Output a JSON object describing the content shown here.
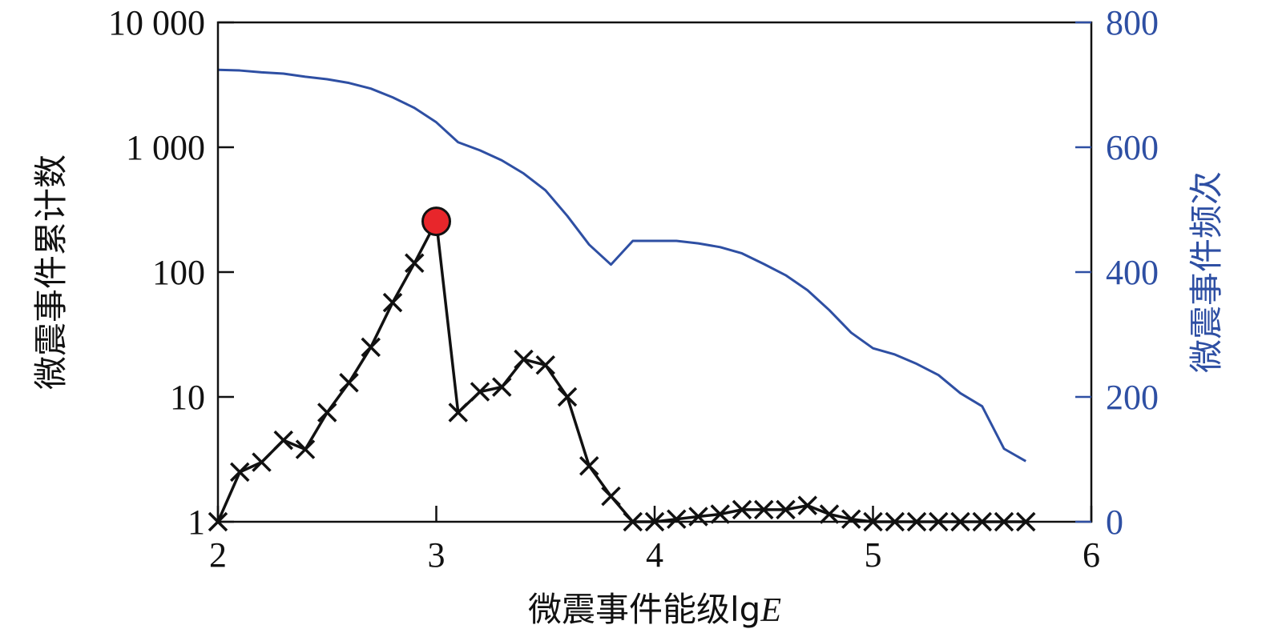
{
  "chart_data": {
    "type": "line",
    "xlabel_cn": "微震事件能级lg",
    "xlabel_var": "E",
    "ylabel_left": "微震事件累计数",
    "ylabel_right": "微震事件频次",
    "x_range": [
      2,
      6
    ],
    "y_left_range": [
      1,
      10000
    ],
    "y_left_scale": "log",
    "y_right_range": [
      0,
      800
    ],
    "grid": false,
    "x_ticks": [
      2,
      3,
      4,
      5,
      6
    ],
    "x_tick_labels": [
      "2",
      "3",
      "4",
      "5",
      "6"
    ],
    "y_left_ticks": [
      1,
      10,
      100,
      1000,
      10000
    ],
    "y_left_tick_labels": [
      "1",
      "10",
      "100",
      "1 000",
      "10 000"
    ],
    "y_right_ticks": [
      0,
      200,
      400,
      600,
      800
    ],
    "y_right_tick_labels": [
      "0",
      "200",
      "400",
      "600",
      "800"
    ],
    "colors": {
      "axis": "#111111",
      "left_series": "#111111",
      "right_series": "#2e4fa3",
      "right_axis": "#2e4fa3",
      "highlight_fill": "#e8262b",
      "highlight_stroke": "#111111"
    },
    "series": [
      {
        "axis": "left",
        "marker": "x",
        "x": [
          2.0,
          2.1,
          2.2,
          2.3,
          2.4,
          2.5,
          2.6,
          2.7,
          2.8,
          2.9,
          3.0,
          3.1,
          3.2,
          3.3,
          3.4,
          3.5,
          3.6,
          3.7,
          3.8,
          3.9,
          4.0,
          4.1,
          4.2,
          4.3,
          4.4,
          4.5,
          4.6,
          4.7,
          4.8,
          4.9,
          5.0,
          5.1,
          5.2,
          5.3,
          5.4,
          5.5,
          5.6,
          5.7
        ],
        "y": [
          1,
          2.5,
          3,
          4.5,
          3.8,
          7.5,
          13,
          25,
          57,
          118,
          255,
          7.5,
          11,
          12,
          20,
          18,
          10,
          2.8,
          1.6,
          1,
          1,
          1.05,
          1.1,
          1.15,
          1.25,
          1.25,
          1.25,
          1.35,
          1.15,
          1.05,
          1,
          1,
          1,
          1,
          1,
          1,
          1,
          1
        ]
      },
      {
        "axis": "right",
        "marker": "none",
        "x": [
          2.0,
          2.1,
          2.2,
          2.3,
          2.4,
          2.5,
          2.6,
          2.7,
          2.8,
          2.9,
          3.0,
          3.1,
          3.2,
          3.3,
          3.4,
          3.5,
          3.6,
          3.7,
          3.8,
          3.9,
          4.0,
          4.1,
          4.2,
          4.3,
          4.4,
          4.5,
          4.6,
          4.7,
          4.8,
          4.9,
          5.0,
          5.1,
          5.2,
          5.3,
          5.4,
          5.5,
          5.6,
          5.7
        ],
        "y": [
          724,
          723,
          720,
          718,
          713,
          709,
          703,
          694,
          680,
          663,
          640,
          608,
          595,
          579,
          558,
          531,
          490,
          444,
          412,
          450,
          450,
          450,
          446,
          440,
          430,
          413,
          395,
          371,
          339,
          303,
          278,
          268,
          253,
          235,
          206,
          185,
          117,
          97
        ]
      }
    ],
    "highlight_point": {
      "x": 3.0,
      "y": 255
    }
  }
}
